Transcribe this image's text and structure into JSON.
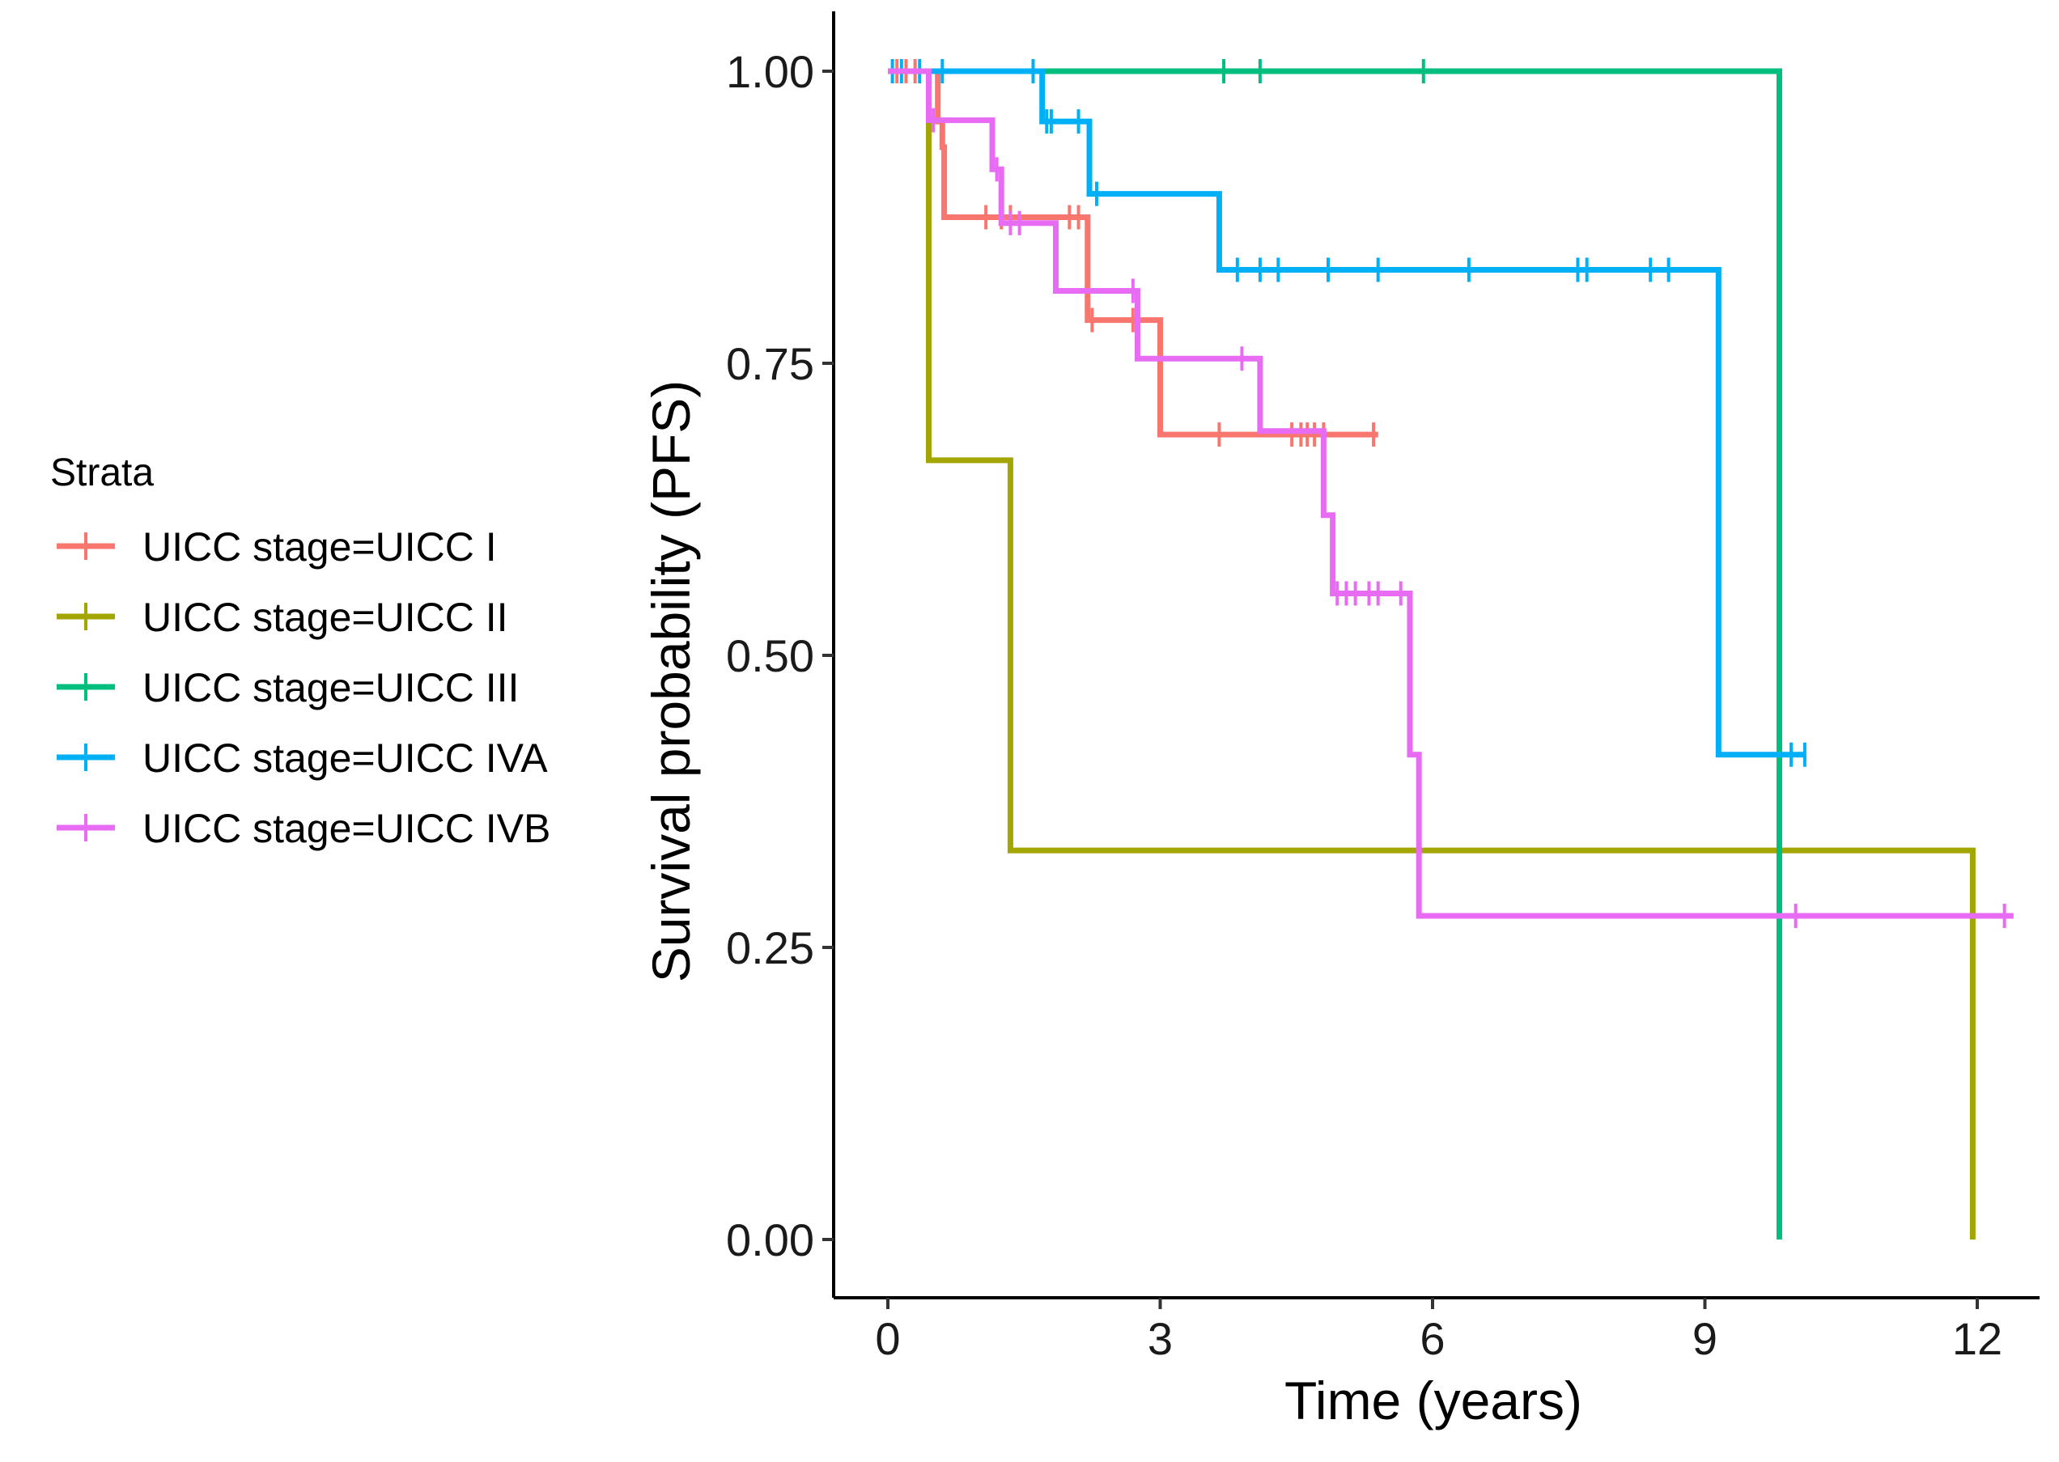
{
  "chart_data": {
    "type": "line",
    "subtype": "kaplan-meier step",
    "title": "",
    "xlabel": "Time (years)",
    "ylabel": "Survival probability (PFS)",
    "xlim": [
      -0.5,
      12.6
    ],
    "ylim": [
      -0.05,
      1.05
    ],
    "xticks": [
      0,
      3,
      6,
      9,
      12
    ],
    "xtick_labels": [
      "0",
      "3",
      "6",
      "9",
      "12"
    ],
    "yticks": [
      0,
      0.25,
      0.5,
      0.75,
      1
    ],
    "ytick_labels": [
      "0.00",
      "0.25",
      "0.50",
      "0.75",
      "1.00"
    ],
    "grid": false,
    "legend_position": "left",
    "legend_title": "Strata",
    "series": [
      {
        "name": "UICC  stage=UICC I",
        "color": "#F8766D",
        "steps": [
          [
            0,
            1.0
          ],
          [
            0.55,
            0.957
          ],
          [
            0.6,
            0.935
          ],
          [
            0.62,
            0.875
          ],
          [
            2.2,
            0.787
          ],
          [
            3.0,
            0.689
          ],
          [
            5.4,
            0.689
          ]
        ],
        "censor": [
          0.1,
          0.2,
          0.3,
          1.08,
          1.25,
          1.35,
          2.0,
          2.1,
          2.25,
          2.7,
          3.65,
          4.45,
          4.55,
          4.62,
          4.7,
          4.8,
          5.35
        ]
      },
      {
        "name": "UICC  stage=UICC II",
        "color": "#A3A500",
        "steps": [
          [
            0,
            1.0
          ],
          [
            0.45,
            0.667
          ],
          [
            1.35,
            0.333
          ],
          [
            11.95,
            0.0
          ]
        ],
        "censor": []
      },
      {
        "name": "UICC  stage=UICC III",
        "color": "#00BF7D",
        "steps": [
          [
            0,
            1.0
          ],
          [
            9.82,
            0.0
          ]
        ],
        "censor": [
          3.7,
          4.1,
          5.9
        ]
      },
      {
        "name": "UICC  stage=UICC IVA",
        "color": "#00B0F6",
        "steps": [
          [
            0,
            1.0
          ],
          [
            1.7,
            0.957
          ],
          [
            2.22,
            0.895
          ],
          [
            3.65,
            0.83
          ],
          [
            9.15,
            0.415
          ],
          [
            10.1,
            0.415
          ]
        ],
        "censor": [
          0.05,
          0.15,
          0.35,
          0.6,
          1.6,
          1.75,
          1.8,
          2.1,
          2.3,
          3.85,
          4.1,
          4.3,
          4.85,
          5.4,
          6.4,
          7.6,
          7.7,
          8.4,
          8.6,
          9.95,
          10.1
        ]
      },
      {
        "name": "UICC  stage=UICC IVB",
        "color": "#E76BF3",
        "steps": [
          [
            0,
            1.0
          ],
          [
            0.45,
            0.958
          ],
          [
            1.15,
            0.916
          ],
          [
            1.25,
            0.87
          ],
          [
            1.85,
            0.812
          ],
          [
            2.75,
            0.754
          ],
          [
            4.1,
            0.692
          ],
          [
            4.8,
            0.62
          ],
          [
            4.9,
            0.553
          ],
          [
            5.75,
            0.415
          ],
          [
            5.85,
            0.277
          ],
          [
            12.4,
            0.277
          ]
        ],
        "censor": [
          0.5,
          1.2,
          1.35,
          1.45,
          2.7,
          3.9,
          4.95,
          5.05,
          5.15,
          5.3,
          5.4,
          5.65,
          10.0,
          12.3
        ]
      }
    ]
  }
}
